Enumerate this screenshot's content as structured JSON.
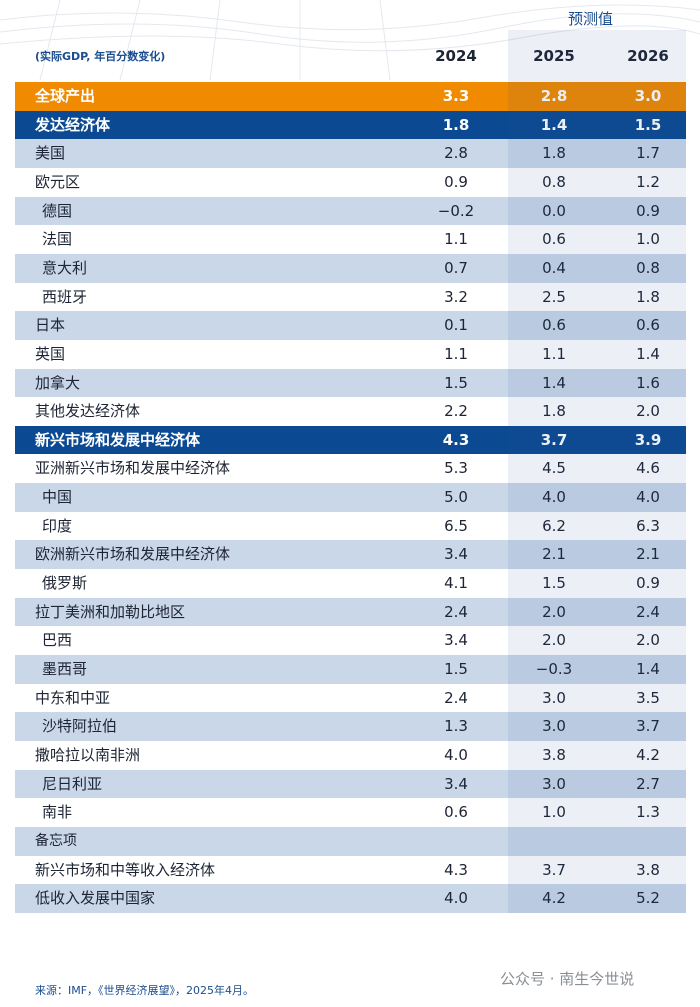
{
  "header": {
    "forecast_label": "预测值",
    "unit_note": "(实际GDP, 年百分数变化)",
    "years": [
      "2024",
      "2025",
      "2026"
    ]
  },
  "table": {
    "rows": [
      {
        "label": "全球产出",
        "values": [
          "3.3",
          "2.8",
          "3.0"
        ]
      },
      {
        "label": "发达经济体",
        "values": [
          "1.8",
          "1.4",
          "1.5"
        ]
      },
      {
        "label": "美国",
        "values": [
          "2.8",
          "1.8",
          "1.7"
        ]
      },
      {
        "label": "欧元区",
        "values": [
          "0.9",
          "0.8",
          "1.2"
        ]
      },
      {
        "label": "德国",
        "values": [
          "−0.2",
          "0.0",
          "0.9"
        ]
      },
      {
        "label": "法国",
        "values": [
          "1.1",
          "0.6",
          "1.0"
        ]
      },
      {
        "label": "意大利",
        "values": [
          "0.7",
          "0.4",
          "0.8"
        ]
      },
      {
        "label": "西班牙",
        "values": [
          "3.2",
          "2.5",
          "1.8"
        ]
      },
      {
        "label": "日本",
        "values": [
          "0.1",
          "0.6",
          "0.6"
        ]
      },
      {
        "label": "英国",
        "values": [
          "1.1",
          "1.1",
          "1.4"
        ]
      },
      {
        "label": "加拿大",
        "values": [
          "1.5",
          "1.4",
          "1.6"
        ]
      },
      {
        "label": "其他发达经济体",
        "values": [
          "2.2",
          "1.8",
          "2.0"
        ]
      },
      {
        "label": "新兴市场和发展中经济体",
        "values": [
          "4.3",
          "3.7",
          "3.9"
        ]
      },
      {
        "label": "亚洲新兴市场和发展中经济体",
        "values": [
          "5.3",
          "4.5",
          "4.6"
        ]
      },
      {
        "label": "中国",
        "values": [
          "5.0",
          "4.0",
          "4.0"
        ]
      },
      {
        "label": "印度",
        "values": [
          "6.5",
          "6.2",
          "6.3"
        ]
      },
      {
        "label": "欧洲新兴市场和发展中经济体",
        "values": [
          "3.4",
          "2.1",
          "2.1"
        ]
      },
      {
        "label": "俄罗斯",
        "values": [
          "4.1",
          "1.5",
          "0.9"
        ]
      },
      {
        "label": "拉丁美洲和加勒比地区",
        "values": [
          "2.4",
          "2.0",
          "2.4"
        ]
      },
      {
        "label": "巴西",
        "values": [
          "3.4",
          "2.0",
          "2.0"
        ]
      },
      {
        "label": "墨西哥",
        "values": [
          "1.5",
          "−0.3",
          "1.4"
        ]
      },
      {
        "label": "中东和中亚",
        "values": [
          "2.4",
          "3.0",
          "3.5"
        ]
      },
      {
        "label": "沙特阿拉伯",
        "values": [
          "1.3",
          "3.0",
          "3.7"
        ]
      },
      {
        "label": "撒哈拉以南非洲",
        "values": [
          "4.0",
          "3.8",
          "4.2"
        ]
      },
      {
        "label": "尼日利亚",
        "values": [
          "3.4",
          "3.0",
          "2.7"
        ]
      },
      {
        "label": "南非",
        "values": [
          "0.6",
          "1.0",
          "1.3"
        ]
      },
      {
        "label": "备忘项"
      },
      {
        "label": "新兴市场和中等收入经济体",
        "values": [
          "4.3",
          "3.7",
          "3.8"
        ]
      },
      {
        "label": "低收入发展中国家",
        "values": [
          "4.0",
          "4.2",
          "5.2"
        ]
      }
    ]
  },
  "source": "来源：IMF，《世界经济展望》，2025年4月。",
  "watermark": "公众号 · 南生今世说"
}
